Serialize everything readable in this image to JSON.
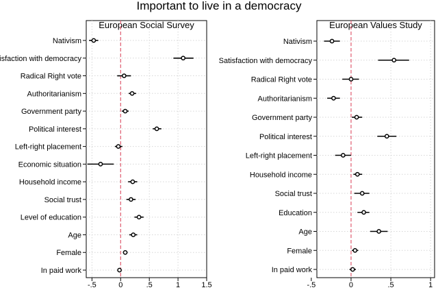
{
  "figure_title": "Important to live in a democracy",
  "chart_data": [
    {
      "type": "coefficient-plot",
      "title": "European Social Survey",
      "xlim": [
        -0.6,
        1.5
      ],
      "xticks": [
        -0.5,
        0,
        0.5,
        1,
        1.5
      ],
      "xtick_labels": [
        "-.5",
        "0",
        ".5",
        "1",
        "1.5"
      ],
      "reference_line": 0,
      "grid": true,
      "rows": [
        {
          "label": "Nativism",
          "est": -0.47,
          "lo": -0.55,
          "hi": -0.39
        },
        {
          "label": "Satisfaction with democracy",
          "est": 1.09,
          "lo": 0.92,
          "hi": 1.27
        },
        {
          "label": "Radical Right vote",
          "est": 0.06,
          "lo": -0.06,
          "hi": 0.18
        },
        {
          "label": "Authoritarianism",
          "est": 0.2,
          "lo": 0.14,
          "hi": 0.27
        },
        {
          "label": "Government party",
          "est": 0.08,
          "lo": 0.02,
          "hi": 0.14
        },
        {
          "label": "Political interest",
          "est": 0.63,
          "lo": 0.56,
          "hi": 0.71
        },
        {
          "label": "Left-right placement",
          "est": -0.04,
          "lo": -0.1,
          "hi": 0.03
        },
        {
          "label": "Economic situation",
          "est": -0.35,
          "lo": -0.58,
          "hi": -0.12
        },
        {
          "label": "Household income",
          "est": 0.21,
          "lo": 0.13,
          "hi": 0.29
        },
        {
          "label": "Social trust",
          "est": 0.18,
          "lo": 0.1,
          "hi": 0.26
        },
        {
          "label": "Level of education",
          "est": 0.32,
          "lo": 0.24,
          "hi": 0.4
        },
        {
          "label": "Age",
          "est": 0.22,
          "lo": 0.15,
          "hi": 0.29
        },
        {
          "label": "Female",
          "est": 0.08,
          "lo": 0.05,
          "hi": 0.12
        },
        {
          "label": "In paid work",
          "est": -0.02,
          "lo": -0.05,
          "hi": 0.01
        }
      ]
    },
    {
      "type": "coefficient-plot",
      "title": "European Values Study",
      "xlim": [
        -0.43,
        1.05
      ],
      "xticks": [
        -0.5,
        0,
        0.5,
        1
      ],
      "xtick_labels": [
        "-.5",
        "0",
        ".5",
        "1"
      ],
      "reference_line": 0,
      "grid": true,
      "rows": [
        {
          "label": "Nativism",
          "est": -0.24,
          "lo": -0.34,
          "hi": -0.14
        },
        {
          "label": "Satisfaction with democracy",
          "est": 0.54,
          "lo": 0.34,
          "hi": 0.73
        },
        {
          "label": "Radical Right vote",
          "est": 0.0,
          "lo": -0.11,
          "hi": 0.1
        },
        {
          "label": "Authoritarianism",
          "est": -0.22,
          "lo": -0.3,
          "hi": -0.14
        },
        {
          "label": "Government party",
          "est": 0.07,
          "lo": 0.01,
          "hi": 0.14
        },
        {
          "label": "Political interest",
          "est": 0.45,
          "lo": 0.33,
          "hi": 0.57
        },
        {
          "label": "Left-right placement",
          "est": -0.1,
          "lo": -0.2,
          "hi": 0.0
        },
        {
          "label": "Household income",
          "est": 0.08,
          "lo": 0.03,
          "hi": 0.14
        },
        {
          "label": "Social trust",
          "est": 0.14,
          "lo": 0.04,
          "hi": 0.23
        },
        {
          "label": "Education",
          "est": 0.16,
          "lo": 0.08,
          "hi": 0.23
        },
        {
          "label": "Age",
          "est": 0.35,
          "lo": 0.24,
          "hi": 0.46
        },
        {
          "label": "Female",
          "est": 0.05,
          "lo": 0.01,
          "hi": 0.09
        },
        {
          "label": "In paid work",
          "est": 0.02,
          "lo": -0.02,
          "hi": 0.06
        }
      ]
    }
  ]
}
